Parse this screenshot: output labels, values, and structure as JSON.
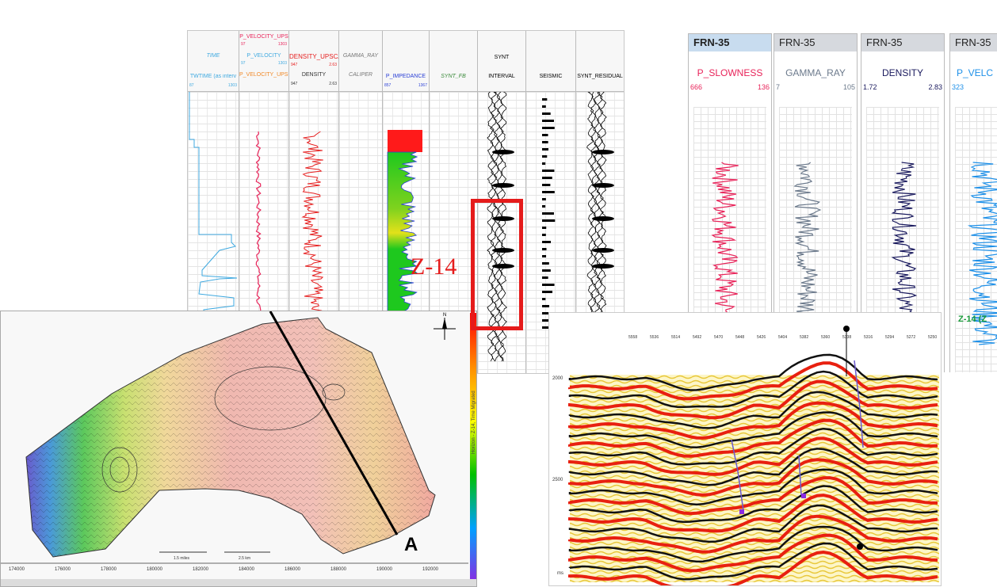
{
  "well_log": {
    "tracks": [
      {
        "name": "TIME",
        "name2": "TWTIME (as interv",
        "scale_min": "87",
        "scale_max": "1303",
        "color": "#3fa9e0"
      },
      {
        "name": "P_VELOCITY_UPS",
        "name2": "P_VELOCITY",
        "name3": "P_VELOCITY_UPSCA",
        "scale_min": "97",
        "scale_max": "1303",
        "color": "#e8245a"
      },
      {
        "name": "DENSITY_UPSCA",
        "name2": "DENSITY",
        "scale_min": "947",
        "scale_max": "2.63",
        "color": "#e61e1e"
      },
      {
        "name": "GAMMA_RAY",
        "name2": "CALIPER",
        "color": "#888888"
      },
      {
        "name": "P_IMPEDANCE",
        "scale_min": "857",
        "scale_max": "1367",
        "color": "#2a3fd6"
      },
      {
        "name": "SYNT_FB",
        "color": "#3a8a3a"
      },
      {
        "name": "SYNT",
        "name2": "INTERVAL",
        "color": "#000000"
      },
      {
        "name": "SEISMIC",
        "color": "#000000"
      },
      {
        "name": "SYNT_RESIDUAL",
        "color": "#000000"
      }
    ],
    "horizon_label": "Z-14"
  },
  "frn": {
    "tracks": [
      {
        "tab": "FRN-35",
        "name": "P_SLOWNESS",
        "scale_min": "666",
        "scale_max": "136",
        "color": "#e8245a"
      },
      {
        "tab": "FRN-35",
        "name": "GAMMA_RAY",
        "scale_min": "7",
        "scale_max": "105",
        "color": "#6c7a8c"
      },
      {
        "tab": "FRN-35",
        "name": "DENSITY",
        "scale_min": "1.72",
        "scale_max": "2.83",
        "color": "#1a1a5e"
      },
      {
        "tab": "FRN-35",
        "name": "P_VELC",
        "scale_min": "323",
        "scale_max": "",
        "color": "#1e90e8"
      }
    ],
    "marker": "Z-14 (Z"
  },
  "map": {
    "x_ticks": [
      "174000",
      "176000",
      "178000",
      "180000",
      "182000",
      "184000",
      "186000",
      "188000",
      "190000",
      "192000"
    ],
    "scale_labels": [
      "1.5 miles",
      "2.5 km"
    ],
    "section_label": "A",
    "colorbar_title": "Horizon - Z-14, Time Migrated"
  },
  "seismic": {
    "y_labels": [
      "2000",
      "2500",
      "ms"
    ],
    "top_labels": [
      "5558",
      "5536",
      "5514",
      "5492",
      "5470",
      "5448",
      "5426",
      "5404",
      "5382",
      "5360",
      "5338",
      "5316",
      "5294",
      "5272",
      "5250"
    ]
  },
  "colors": {
    "accent_red": "#e51b1b"
  }
}
